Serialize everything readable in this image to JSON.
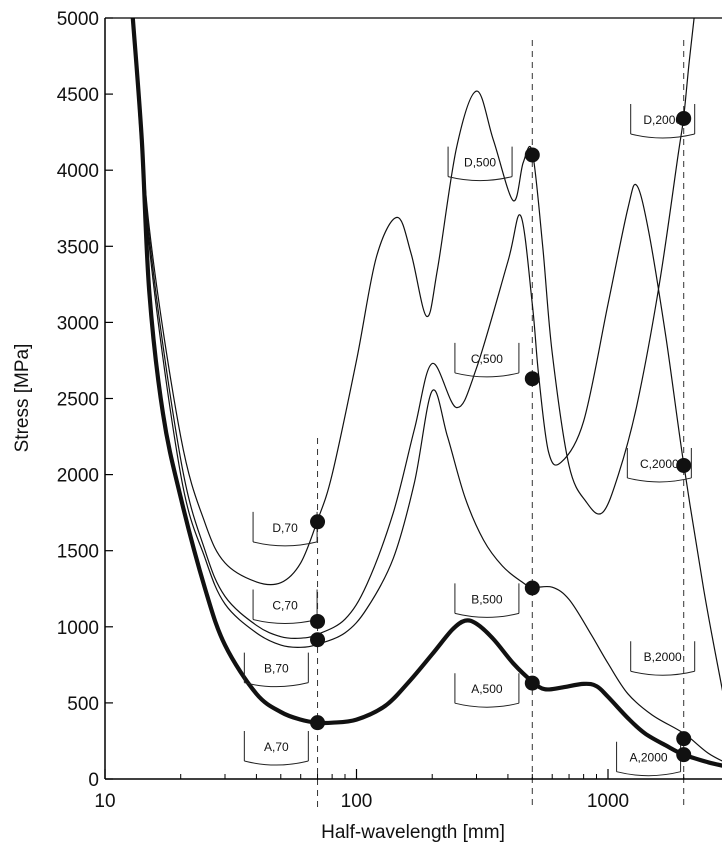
{
  "chart_data": {
    "type": "line",
    "xlabel": "Half-wavelength [mm]",
    "ylabel": "Stress [MPa]",
    "x_scale": "log",
    "xlim": [
      10,
      3000
    ],
    "ylim": [
      0,
      5000
    ],
    "x_ticks": [
      {
        "value": 10,
        "label": "10"
      },
      {
        "value": 100,
        "label": "100"
      },
      {
        "value": 1000,
        "label": "1000"
      }
    ],
    "y_ticks": [
      {
        "value": 0,
        "label": "0"
      },
      {
        "value": 500,
        "label": "500"
      },
      {
        "value": 1000,
        "label": "1000"
      },
      {
        "value": 1500,
        "label": "1500"
      },
      {
        "value": 2000,
        "label": "2000"
      },
      {
        "value": 2500,
        "label": "2500"
      },
      {
        "value": 3000,
        "label": "3000"
      },
      {
        "value": 3500,
        "label": "3500"
      },
      {
        "value": 4000,
        "label": "4000"
      },
      {
        "value": 4500,
        "label": "4500"
      },
      {
        "value": 5000,
        "label": "5000"
      }
    ],
    "vertical_lines": [
      70,
      500,
      2000
    ],
    "series": [
      {
        "id": "A",
        "weight": "heavy",
        "points": [
          [
            12.9,
            5000
          ],
          [
            14,
            4200
          ],
          [
            15,
            3200
          ],
          [
            17,
            2400
          ],
          [
            20,
            1850
          ],
          [
            25,
            1250
          ],
          [
            30,
            880
          ],
          [
            40,
            560
          ],
          [
            50,
            440
          ],
          [
            60,
            390
          ],
          [
            70,
            370
          ],
          [
            80,
            370
          ],
          [
            100,
            390
          ],
          [
            130,
            480
          ],
          [
            160,
            630
          ],
          [
            200,
            820
          ],
          [
            240,
            980
          ],
          [
            270,
            1040
          ],
          [
            300,
            1020
          ],
          [
            350,
            920
          ],
          [
            420,
            760
          ],
          [
            500,
            640
          ],
          [
            560,
            590
          ],
          [
            650,
            600
          ],
          [
            800,
            625
          ],
          [
            900,
            610
          ],
          [
            1000,
            540
          ],
          [
            1200,
            400
          ],
          [
            1400,
            300
          ],
          [
            1700,
            220
          ],
          [
            2000,
            160
          ],
          [
            2500,
            110
          ],
          [
            3000,
            80
          ]
        ]
      },
      {
        "id": "B",
        "weight": "light",
        "points": [
          [
            12.9,
            5000
          ],
          [
            15,
            3500
          ],
          [
            20,
            2000
          ],
          [
            25,
            1450
          ],
          [
            30,
            1150
          ],
          [
            40,
            960
          ],
          [
            50,
            880
          ],
          [
            60,
            865
          ],
          [
            70,
            885
          ],
          [
            90,
            960
          ],
          [
            110,
            1120
          ],
          [
            140,
            1450
          ],
          [
            170,
            1950
          ],
          [
            200,
            2550
          ],
          [
            230,
            2250
          ],
          [
            270,
            1850
          ],
          [
            320,
            1570
          ],
          [
            380,
            1400
          ],
          [
            450,
            1300
          ],
          [
            500,
            1260
          ],
          [
            600,
            1260
          ],
          [
            700,
            1180
          ],
          [
            850,
            960
          ],
          [
            1000,
            760
          ],
          [
            1200,
            560
          ],
          [
            1500,
            420
          ],
          [
            2000,
            300
          ],
          [
            2500,
            170
          ],
          [
            3000,
            100
          ]
        ]
      },
      {
        "id": "C",
        "weight": "light",
        "points": [
          [
            12.9,
            5000
          ],
          [
            15,
            3560
          ],
          [
            20,
            2100
          ],
          [
            25,
            1500
          ],
          [
            30,
            1200
          ],
          [
            40,
            1010
          ],
          [
            50,
            935
          ],
          [
            60,
            925
          ],
          [
            70,
            950
          ],
          [
            90,
            1050
          ],
          [
            110,
            1280
          ],
          [
            140,
            1750
          ],
          [
            170,
            2300
          ],
          [
            200,
            2730
          ],
          [
            250,
            2440
          ],
          [
            300,
            2700
          ],
          [
            400,
            3400
          ],
          [
            450,
            3700
          ],
          [
            500,
            3120
          ],
          [
            530,
            2650
          ],
          [
            580,
            2150
          ],
          [
            650,
            2080
          ],
          [
            800,
            2350
          ],
          [
            1000,
            3120
          ],
          [
            1200,
            3750
          ],
          [
            1300,
            3900
          ],
          [
            1450,
            3600
          ],
          [
            1700,
            2900
          ],
          [
            2000,
            2070
          ],
          [
            2400,
            1250
          ],
          [
            2800,
            650
          ],
          [
            3000,
            400
          ]
        ]
      },
      {
        "id": "D",
        "weight": "light",
        "points": [
          [
            12.9,
            5000
          ],
          [
            15,
            3620
          ],
          [
            20,
            2250
          ],
          [
            25,
            1680
          ],
          [
            30,
            1420
          ],
          [
            40,
            1295
          ],
          [
            50,
            1290
          ],
          [
            60,
            1420
          ],
          [
            70,
            1700
          ],
          [
            80,
            2000
          ],
          [
            100,
            2750
          ],
          [
            120,
            3430
          ],
          [
            145,
            3690
          ],
          [
            165,
            3450
          ],
          [
            190,
            3040
          ],
          [
            210,
            3350
          ],
          [
            250,
            4150
          ],
          [
            300,
            4520
          ],
          [
            350,
            4200
          ],
          [
            420,
            3800
          ],
          [
            460,
            4050
          ],
          [
            500,
            4120
          ],
          [
            550,
            3500
          ],
          [
            600,
            2800
          ],
          [
            700,
            2060
          ],
          [
            820,
            1820
          ],
          [
            950,
            1750
          ],
          [
            1100,
            2000
          ],
          [
            1300,
            2450
          ],
          [
            1600,
            3250
          ],
          [
            1900,
            4100
          ],
          [
            2000,
            4350
          ],
          [
            2100,
            4700
          ],
          [
            2200,
            5000
          ]
        ]
      }
    ],
    "markers": [
      {
        "x": 70,
        "y": 1690
      },
      {
        "x": 70,
        "y": 1035
      },
      {
        "x": 70,
        "y": 915
      },
      {
        "x": 70,
        "y": 370
      },
      {
        "x": 500,
        "y": 4100
      },
      {
        "x": 500,
        "y": 2630
      },
      {
        "x": 500,
        "y": 1255
      },
      {
        "x": 500,
        "y": 630
      },
      {
        "x": 2000,
        "y": 4340
      },
      {
        "x": 2000,
        "y": 2060
      },
      {
        "x": 2000,
        "y": 265
      },
      {
        "x": 2000,
        "y": 160
      }
    ],
    "section_labels": [
      {
        "text": "D,70",
        "x": 52,
        "y": 1650
      },
      {
        "text": "C,70",
        "x": 52,
        "y": 1140
      },
      {
        "text": "B,70",
        "x": 48,
        "y": 725
      },
      {
        "text": "A,70",
        "x": 48,
        "y": 210
      },
      {
        "text": "D,500",
        "x": 310,
        "y": 4050
      },
      {
        "text": "C,500",
        "x": 330,
        "y": 2760
      },
      {
        "text": "B,500",
        "x": 330,
        "y": 1180
      },
      {
        "text": "A,500",
        "x": 330,
        "y": 590
      },
      {
        "text": "D,2000",
        "x": 1650,
        "y": 4330
      },
      {
        "text": "C,2000",
        "x": 1600,
        "y": 2070
      },
      {
        "text": "B,2000",
        "x": 1650,
        "y": 800
      },
      {
        "text": "A,2000",
        "x": 1450,
        "y": 140
      }
    ]
  }
}
